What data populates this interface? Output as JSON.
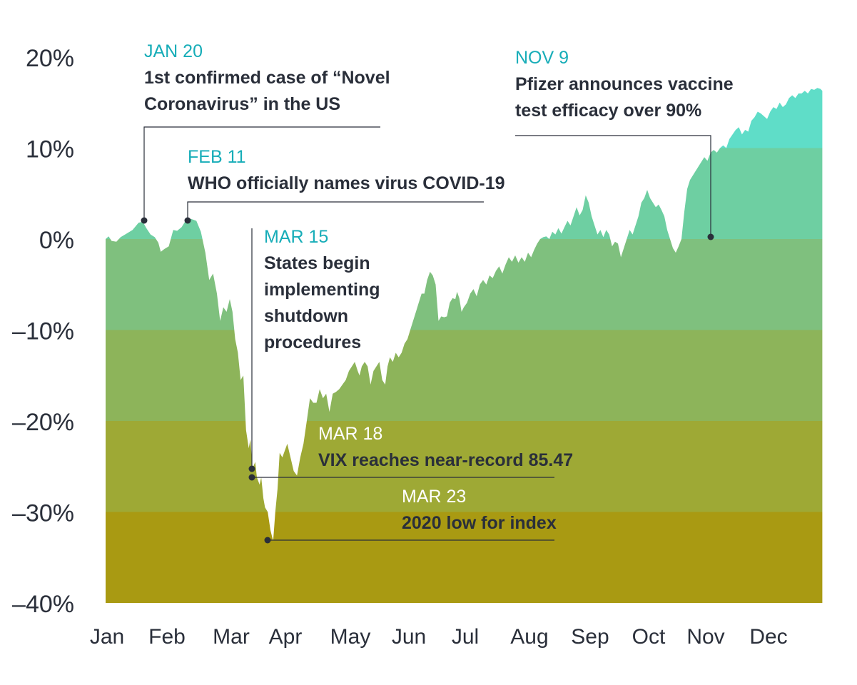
{
  "chart_data": {
    "type": "area",
    "title": "",
    "xlabel": "",
    "ylabel": "",
    "ylim": [
      -40,
      20
    ],
    "grid": false,
    "y_ticks": [
      "20%",
      "10%",
      "0%",
      "–10%",
      "–20%",
      "–30%",
      "–40%"
    ],
    "y_tick_values": [
      20,
      10,
      0,
      -10,
      -20,
      -30,
      -40
    ],
    "x_ticks": [
      "Jan",
      "Feb",
      "Mar",
      "Apr",
      "May",
      "Jun",
      "Jul",
      "Aug",
      "Sep",
      "Oct",
      "Nov",
      "Dec"
    ],
    "bands": [
      {
        "from": 10,
        "to": 20,
        "color": "#5fddc8"
      },
      {
        "from": 0,
        "to": 10,
        "color": "#6ecfa2"
      },
      {
        "from": -10,
        "to": 0,
        "color": "#7fc07e"
      },
      {
        "from": -20,
        "to": -10,
        "color": "#8db45a"
      },
      {
        "from": -30,
        "to": -20,
        "color": "#9ea935"
      },
      {
        "from": -40,
        "to": -30,
        "color": "#a99a12"
      }
    ],
    "series": [
      {
        "values": [
          [
            0.0,
            0.0
          ],
          [
            0.05,
            0.3
          ],
          [
            0.1,
            -0.2
          ],
          [
            0.18,
            -0.3
          ],
          [
            0.25,
            0.2
          ],
          [
            0.35,
            0.6
          ],
          [
            0.45,
            1.0
          ],
          [
            0.55,
            1.8
          ],
          [
            0.62,
            1.9
          ],
          [
            0.68,
            1.2
          ],
          [
            0.75,
            0.5
          ],
          [
            0.82,
            0.2
          ],
          [
            0.88,
            -0.4
          ],
          [
            0.92,
            -1.4
          ],
          [
            0.98,
            -1.1
          ],
          [
            1.05,
            -0.8
          ],
          [
            1.12,
            1.0
          ],
          [
            1.18,
            0.9
          ],
          [
            1.25,
            1.3
          ],
          [
            1.32,
            2.1
          ],
          [
            1.4,
            2.2
          ],
          [
            1.48,
            2.0
          ],
          [
            1.55,
            0.8
          ],
          [
            1.62,
            -1.5
          ],
          [
            1.68,
            -4.5
          ],
          [
            1.74,
            -3.8
          ],
          [
            1.8,
            -6.0
          ],
          [
            1.85,
            -9.0
          ],
          [
            1.9,
            -7.5
          ],
          [
            1.95,
            -8.0
          ],
          [
            2.0,
            -6.6
          ],
          [
            2.05,
            -8.0
          ],
          [
            2.1,
            -11.0
          ],
          [
            2.15,
            -12.5
          ],
          [
            2.2,
            -15.5
          ],
          [
            2.25,
            -15.0
          ],
          [
            2.3,
            -21.0
          ],
          [
            2.35,
            -23.0
          ],
          [
            2.38,
            -22.0
          ],
          [
            2.42,
            -25.2
          ],
          [
            2.47,
            -24.5
          ],
          [
            2.5,
            -26.2
          ],
          [
            2.55,
            -27.0
          ],
          [
            2.58,
            -26.2
          ],
          [
            2.62,
            -28.5
          ],
          [
            2.65,
            -29.5
          ],
          [
            2.7,
            -30.0
          ],
          [
            2.75,
            -32.0
          ],
          [
            2.8,
            -33.2
          ],
          [
            2.84,
            -30.0
          ],
          [
            2.88,
            -27.5
          ],
          [
            2.92,
            -23.5
          ],
          [
            2.97,
            -24.0
          ],
          [
            3.0,
            -23.5
          ],
          [
            3.05,
            -22.5
          ],
          [
            3.1,
            -24.0
          ],
          [
            3.15,
            -25.5
          ],
          [
            3.2,
            -26.0
          ],
          [
            3.25,
            -24.0
          ],
          [
            3.3,
            -22.5
          ],
          [
            3.35,
            -20.0
          ],
          [
            3.4,
            -17.5
          ],
          [
            3.45,
            -18.0
          ],
          [
            3.5,
            -18.0
          ],
          [
            3.55,
            -16.5
          ],
          [
            3.6,
            -17.5
          ],
          [
            3.65,
            -17.0
          ],
          [
            3.7,
            -19.0
          ],
          [
            3.75,
            -17.0
          ],
          [
            3.8,
            -16.8
          ],
          [
            3.85,
            -16.5
          ],
          [
            3.9,
            -16.0
          ],
          [
            3.95,
            -15.5
          ],
          [
            4.0,
            -14.5
          ],
          [
            4.05,
            -14.0
          ],
          [
            4.1,
            -13.5
          ],
          [
            4.15,
            -14.5
          ],
          [
            4.18,
            -15.0
          ],
          [
            4.22,
            -14.0
          ],
          [
            4.27,
            -13.5
          ],
          [
            4.32,
            -14.0
          ],
          [
            4.37,
            -16.0
          ],
          [
            4.42,
            -14.5
          ],
          [
            4.47,
            -14.0
          ],
          [
            4.52,
            -13.5
          ],
          [
            4.57,
            -15.5
          ],
          [
            4.62,
            -16.0
          ],
          [
            4.66,
            -14.0
          ],
          [
            4.7,
            -13.0
          ],
          [
            4.75,
            -13.5
          ],
          [
            4.8,
            -12.5
          ],
          [
            4.85,
            -13.0
          ],
          [
            4.9,
            -12.5
          ],
          [
            4.95,
            -11.5
          ],
          [
            5.0,
            -11.0
          ],
          [
            5.05,
            -10.0
          ],
          [
            5.1,
            -9.0
          ],
          [
            5.15,
            -8.0
          ],
          [
            5.2,
            -7.0
          ],
          [
            5.25,
            -6.0
          ],
          [
            5.3,
            -6.0
          ],
          [
            5.35,
            -4.5
          ],
          [
            5.4,
            -3.6
          ],
          [
            5.45,
            -4.0
          ],
          [
            5.5,
            -5.0
          ],
          [
            5.55,
            -9.0
          ],
          [
            5.6,
            -8.5
          ],
          [
            5.65,
            -8.6
          ],
          [
            5.7,
            -8.5
          ],
          [
            5.75,
            -7.0
          ],
          [
            5.8,
            -6.5
          ],
          [
            5.85,
            -6.6
          ],
          [
            5.88,
            -5.8
          ],
          [
            5.92,
            -6.5
          ],
          [
            5.96,
            -8.0
          ],
          [
            6.0,
            -7.5
          ],
          [
            6.05,
            -7.0
          ],
          [
            6.1,
            -6.0
          ],
          [
            6.15,
            -5.5
          ],
          [
            6.2,
            -6.3
          ],
          [
            6.25,
            -5.0
          ],
          [
            6.3,
            -4.5
          ],
          [
            6.35,
            -5.0
          ],
          [
            6.4,
            -4.0
          ],
          [
            6.45,
            -4.3
          ],
          [
            6.5,
            -3.5
          ],
          [
            6.55,
            -3.0
          ],
          [
            6.6,
            -3.8
          ],
          [
            6.65,
            -2.8
          ],
          [
            6.7,
            -2.0
          ],
          [
            6.75,
            -2.5
          ],
          [
            6.8,
            -1.8
          ],
          [
            6.85,
            -2.6
          ],
          [
            6.9,
            -2.0
          ],
          [
            6.95,
            -2.5
          ],
          [
            7.0,
            -1.5
          ],
          [
            7.05,
            -2.0
          ],
          [
            7.1,
            -1.2
          ],
          [
            7.15,
            -0.5
          ],
          [
            7.2,
            0.0
          ],
          [
            7.25,
            0.2
          ],
          [
            7.3,
            0.3
          ],
          [
            7.35,
            0.0
          ],
          [
            7.4,
            0.8
          ],
          [
            7.45,
            0.5
          ],
          [
            7.5,
            1.2
          ],
          [
            7.55,
            0.6
          ],
          [
            7.6,
            1.3
          ],
          [
            7.65,
            2.0
          ],
          [
            7.7,
            1.5
          ],
          [
            7.75,
            2.5
          ],
          [
            7.8,
            3.5
          ],
          [
            7.85,
            2.6
          ],
          [
            7.9,
            3.2
          ],
          [
            7.95,
            4.8
          ],
          [
            8.0,
            4.0
          ],
          [
            8.05,
            2.5
          ],
          [
            8.1,
            1.5
          ],
          [
            8.15,
            0.5
          ],
          [
            8.2,
            1.0
          ],
          [
            8.25,
            0.2
          ],
          [
            8.3,
            1.0
          ],
          [
            8.35,
            0.5
          ],
          [
            8.4,
            -0.8
          ],
          [
            8.45,
            -0.3
          ],
          [
            8.5,
            -0.5
          ],
          [
            8.55,
            -2.0
          ],
          [
            8.6,
            -1.0
          ],
          [
            8.65,
            0.0
          ],
          [
            8.7,
            1.0
          ],
          [
            8.75,
            0.5
          ],
          [
            8.8,
            1.5
          ],
          [
            8.85,
            2.5
          ],
          [
            8.9,
            4.0
          ],
          [
            8.95,
            4.5
          ],
          [
            9.0,
            5.4
          ],
          [
            9.05,
            4.5
          ],
          [
            9.1,
            4.0
          ],
          [
            9.15,
            3.5
          ],
          [
            9.2,
            3.8
          ],
          [
            9.25,
            3.2
          ],
          [
            9.3,
            2.5
          ],
          [
            9.35,
            1.0
          ],
          [
            9.4,
            0.0
          ],
          [
            9.45,
            -1.0
          ],
          [
            9.5,
            -1.5
          ],
          [
            9.55,
            -0.8
          ],
          [
            9.6,
            0.0
          ],
          [
            9.65,
            3.0
          ],
          [
            9.7,
            5.5
          ],
          [
            9.75,
            6.5
          ],
          [
            9.8,
            7.0
          ],
          [
            9.85,
            7.5
          ],
          [
            9.9,
            8.0
          ],
          [
            9.95,
            8.5
          ],
          [
            10.0,
            9.0
          ],
          [
            10.05,
            8.6
          ],
          [
            10.1,
            9.5
          ],
          [
            10.15,
            9.8
          ],
          [
            10.2,
            9.5
          ],
          [
            10.25,
            10.0
          ],
          [
            10.3,
            10.3
          ],
          [
            10.35,
            10.0
          ],
          [
            10.4,
            11.0
          ],
          [
            10.45,
            11.5
          ],
          [
            10.5,
            12.0
          ],
          [
            10.55,
            12.3
          ],
          [
            10.6,
            11.5
          ],
          [
            10.65,
            12.0
          ],
          [
            10.7,
            11.8
          ],
          [
            10.75,
            13.0
          ],
          [
            10.8,
            13.4
          ],
          [
            10.85,
            14.0
          ],
          [
            10.9,
            13.8
          ],
          [
            10.95,
            13.5
          ],
          [
            11.0,
            13.2
          ],
          [
            11.05,
            14.0
          ],
          [
            11.1,
            14.5
          ],
          [
            11.15,
            14.3
          ],
          [
            11.2,
            15.0
          ],
          [
            11.25,
            14.5
          ],
          [
            11.3,
            14.8
          ],
          [
            11.35,
            15.5
          ],
          [
            11.4,
            15.8
          ],
          [
            11.45,
            15.5
          ],
          [
            11.5,
            16.0
          ],
          [
            11.55,
            16.0
          ],
          [
            11.6,
            16.3
          ],
          [
            11.65,
            16.0
          ],
          [
            11.7,
            16.5
          ],
          [
            11.75,
            16.4
          ],
          [
            11.8,
            16.6
          ],
          [
            11.85,
            16.5
          ],
          [
            11.88,
            16.3
          ]
        ]
      }
    ],
    "annotations": [
      {
        "date": "JAN 20",
        "text": [
          "1st confirmed case of “Novel",
          "Coronavirus” in the US"
        ],
        "x": 0.62,
        "y": 1.9,
        "date_color": "#17adb8"
      },
      {
        "date": "FEB 11",
        "text": [
          "WHO officially names virus COVID-19"
        ],
        "x": 1.35,
        "y": 2.1,
        "date_color": "#17adb8"
      },
      {
        "date": "MAR 15",
        "text": [
          "States begin",
          "implementing",
          "shutdown",
          "procedures"
        ],
        "x": 2.42,
        "y": -25.2,
        "date_color": "#17adb8"
      },
      {
        "date": "MAR 18",
        "text": [
          "VIX reaches near-record 85.47"
        ],
        "x": 2.5,
        "y": -26.2,
        "date_color": "#ffffff"
      },
      {
        "date": "MAR 23",
        "text": [
          "2020 low for index"
        ],
        "x": 2.8,
        "y": -33.2,
        "date_color": "#ffffff"
      },
      {
        "date": "NOV 9",
        "text": [
          "Pfizer announces vaccine",
          "test efficacy over 90%"
        ],
        "x": 9.6,
        "y": 0.0,
        "date_color": "#17adb8"
      }
    ]
  },
  "colors": {
    "text": "#2a2f3a",
    "accent": "#17adb8"
  }
}
